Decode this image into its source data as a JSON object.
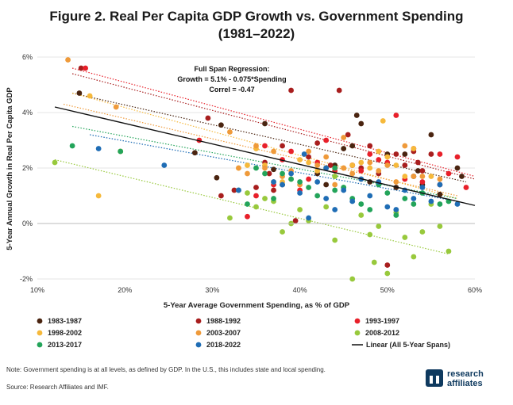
{
  "figure": {
    "title_line1": "Figure 2. Real Per Capita GDP Growth vs. Government Spending",
    "title_line2": "(1981–2022)",
    "note": "Note: Government spending is at all levels, as defined by GDP. In the U.S., this includes state and local spending.",
    "source": "Source: Research Affiliates and IMF.",
    "logo": {
      "word1": "research",
      "word2": "affiliates",
      "icon": "research-affiliates-logo-icon",
      "color": "#0f3a5f"
    }
  },
  "chart_data": {
    "type": "scatter",
    "title": "Figure 2. Real Per Capita GDP Growth vs. Government Spending (1981–2022)",
    "xlabel": "5-Year Average Government Spending, as % of GDP",
    "ylabel": "5-Year Annual Growth in Real Per Capita GDP",
    "xlim": [
      10,
      60
    ],
    "ylim": [
      -2,
      6
    ],
    "xticks": [
      10,
      20,
      30,
      40,
      50,
      60
    ],
    "yticks": [
      -2,
      0,
      2,
      4,
      6
    ],
    "xtick_labels": [
      "10%",
      "20%",
      "30%",
      "40%",
      "50%",
      "60%"
    ],
    "ytick_labels": [
      "-2%",
      "0%",
      "2%",
      "4%",
      "6%"
    ],
    "grid": "horizontal",
    "legend_placement": "bottom",
    "annotation": {
      "line1": "Full Span Regression:",
      "line2": "Growth = 5.1% - 0.075*Spending",
      "line3": "Correl = -0.47"
    },
    "regression": {
      "name": "Linear (All 5-Year Spans)",
      "color": "#111111",
      "x": [
        12,
        60
      ],
      "y": [
        4.2,
        0.65
      ]
    },
    "series": [
      {
        "name": "1983-1987",
        "color": "#4a2410",
        "trend": {
          "x": [
            14,
            59
          ],
          "y": [
            4.7,
            1.5
          ]
        },
        "points": [
          [
            14.8,
            4.7
          ],
          [
            28,
            2.55
          ],
          [
            30.5,
            1.65
          ],
          [
            31,
            3.55
          ],
          [
            36,
            3.6
          ],
          [
            37,
            1.95
          ],
          [
            38,
            1.4
          ],
          [
            42,
            1.8
          ],
          [
            43,
            1.4
          ],
          [
            44,
            2.1
          ],
          [
            45,
            2.7
          ],
          [
            46,
            2.8
          ],
          [
            46.5,
            3.9
          ],
          [
            47,
            3.6
          ],
          [
            48,
            1.5
          ],
          [
            50,
            2.5
          ],
          [
            51,
            1.3
          ],
          [
            52,
            2.5
          ],
          [
            53,
            1.7
          ],
          [
            53.5,
            1.9
          ],
          [
            54,
            1.4
          ],
          [
            55,
            3.2
          ],
          [
            58,
            2.0
          ],
          [
            58.5,
            1.7
          ],
          [
            56,
            1.05
          ]
        ]
      },
      {
        "name": "1988-1992",
        "color": "#a81e1e",
        "trend": {
          "x": [
            14,
            60
          ],
          "y": [
            5.4,
            1.6
          ]
        },
        "points": [
          [
            15,
            5.6
          ],
          [
            29.5,
            3.8
          ],
          [
            31,
            1.0
          ],
          [
            32.5,
            1.2
          ],
          [
            35,
            1.3
          ],
          [
            36,
            2.2
          ],
          [
            37,
            1.2
          ],
          [
            38,
            2.8
          ],
          [
            39,
            4.8
          ],
          [
            39.5,
            0.1
          ],
          [
            41,
            2.4
          ],
          [
            42,
            2.9
          ],
          [
            43.5,
            2.1
          ],
          [
            44.5,
            4.8
          ],
          [
            45.5,
            3.2
          ],
          [
            46,
            2.1
          ],
          [
            47,
            2.0
          ],
          [
            48,
            2.8
          ],
          [
            49,
            1.8
          ],
          [
            50,
            -1.5
          ],
          [
            51,
            2.5
          ],
          [
            52,
            2.1
          ],
          [
            53,
            2.6
          ],
          [
            53.5,
            2.2
          ],
          [
            54,
            1.9
          ],
          [
            55,
            2.5
          ],
          [
            56,
            1.4
          ],
          [
            36.5,
            1.8
          ]
        ]
      },
      {
        "name": "1993-1997",
        "color": "#e8202a",
        "trend": {
          "x": [
            14,
            60
          ],
          "y": [
            5.6,
            1.7
          ]
        },
        "points": [
          [
            15.5,
            5.6
          ],
          [
            28.5,
            3.0
          ],
          [
            35,
            1.0
          ],
          [
            36,
            2.8
          ],
          [
            37,
            1.4
          ],
          [
            38,
            2.3
          ],
          [
            39,
            2.6
          ],
          [
            40,
            1.2
          ],
          [
            41,
            1.6
          ],
          [
            42,
            2.2
          ],
          [
            43,
            3.0
          ],
          [
            44,
            1.9
          ],
          [
            46,
            2.1
          ],
          [
            47,
            1.9
          ],
          [
            48,
            2.5
          ],
          [
            49,
            2.3
          ],
          [
            50,
            2.2
          ],
          [
            51,
            3.9
          ],
          [
            52,
            1.6
          ],
          [
            53,
            2.7
          ],
          [
            54,
            1.5
          ],
          [
            56,
            2.5
          ],
          [
            57,
            1.8
          ],
          [
            58,
            2.4
          ],
          [
            59,
            1.3
          ],
          [
            34,
            0.25
          ]
        ]
      },
      {
        "name": "1998-2002",
        "color": "#f6b93b",
        "trend": {
          "x": [
            14,
            58
          ],
          "y": [
            4.7,
            0.9
          ]
        },
        "points": [
          [
            16,
            4.6
          ],
          [
            17,
            1.0
          ],
          [
            19.5,
            2.6
          ],
          [
            33,
            2.0
          ],
          [
            34,
            2.1
          ],
          [
            35,
            2.7
          ],
          [
            36,
            2.1
          ],
          [
            37,
            1.5
          ],
          [
            38,
            1.5
          ],
          [
            39,
            1.6
          ],
          [
            40,
            2.3
          ],
          [
            41,
            2.2
          ],
          [
            42,
            1.9
          ],
          [
            43,
            2.0
          ],
          [
            45,
            2.0
          ],
          [
            46,
            2.1
          ],
          [
            47,
            2.2
          ],
          [
            48,
            2.0
          ],
          [
            49,
            2.6
          ],
          [
            50,
            2.4
          ],
          [
            51,
            2.1
          ],
          [
            52,
            1.7
          ],
          [
            53,
            2.7
          ],
          [
            55,
            1.7
          ],
          [
            49.5,
            3.7
          ]
        ]
      },
      {
        "name": "2003-2007",
        "color": "#ef9a3a",
        "trend": {
          "x": [
            13,
            58
          ],
          "y": [
            4.3,
            1.0
          ]
        },
        "points": [
          [
            13.5,
            5.9
          ],
          [
            19,
            4.2
          ],
          [
            32,
            3.3
          ],
          [
            33,
            2.0
          ],
          [
            34,
            1.8
          ],
          [
            35,
            2.8
          ],
          [
            36,
            2.0
          ],
          [
            37,
            2.6
          ],
          [
            38,
            1.7
          ],
          [
            39,
            1.9
          ],
          [
            40,
            1.4
          ],
          [
            41,
            2.6
          ],
          [
            42,
            2.1
          ],
          [
            43,
            2.4
          ],
          [
            44,
            1.4
          ],
          [
            45,
            2.0
          ],
          [
            46,
            1.8
          ],
          [
            47,
            1.6
          ],
          [
            48,
            2.2
          ],
          [
            49,
            1.9
          ],
          [
            50,
            2.1
          ],
          [
            51,
            1.5
          ],
          [
            52,
            2.8
          ],
          [
            53,
            1.7
          ],
          [
            54,
            1.7
          ],
          [
            56,
            1.6
          ],
          [
            45,
            3.1
          ]
        ]
      },
      {
        "name": "2008-2012",
        "color": "#98c93c",
        "trend": {
          "x": [
            12,
            57
          ],
          "y": [
            2.3,
            -1.1
          ]
        },
        "points": [
          [
            12,
            2.2
          ],
          [
            19.5,
            2.6
          ],
          [
            32,
            0.2
          ],
          [
            34,
            1.1
          ],
          [
            35,
            0.6
          ],
          [
            36,
            0.9
          ],
          [
            37,
            0.8
          ],
          [
            38,
            -0.3
          ],
          [
            39,
            0.0
          ],
          [
            40,
            0.5
          ],
          [
            41,
            0.1
          ],
          [
            43,
            0.6
          ],
          [
            44,
            -0.6
          ],
          [
            45,
            1.3
          ],
          [
            46,
            -2.0
          ],
          [
            47,
            0.3
          ],
          [
            48,
            -0.4
          ],
          [
            48.5,
            -1.4
          ],
          [
            49,
            -0.1
          ],
          [
            50,
            -1.8
          ],
          [
            51,
            0.4
          ],
          [
            52,
            -0.5
          ],
          [
            53,
            -1.2
          ],
          [
            54,
            -0.3
          ],
          [
            55,
            0.7
          ],
          [
            56,
            -0.1
          ],
          [
            57,
            -1.0
          ],
          [
            44,
            1.7
          ]
        ]
      },
      {
        "name": "2013-2017",
        "color": "#23a45a",
        "trend": {
          "x": [
            14,
            58
          ],
          "y": [
            3.5,
            0.9
          ]
        },
        "points": [
          [
            14,
            2.8
          ],
          [
            19.5,
            2.6
          ],
          [
            33,
            1.2
          ],
          [
            34,
            0.7
          ],
          [
            35,
            2.0
          ],
          [
            36,
            1.8
          ],
          [
            37,
            0.9
          ],
          [
            38,
            1.8
          ],
          [
            39,
            1.6
          ],
          [
            40,
            1.5
          ],
          [
            41,
            1.3
          ],
          [
            42,
            1.0
          ],
          [
            43,
            2.0
          ],
          [
            44,
            1.2
          ],
          [
            45,
            1.3
          ],
          [
            46,
            0.9
          ],
          [
            47,
            0.7
          ],
          [
            48,
            0.5
          ],
          [
            49,
            1.4
          ],
          [
            50,
            1.1
          ],
          [
            51,
            0.3
          ],
          [
            52,
            0.9
          ],
          [
            53,
            0.7
          ],
          [
            54,
            1.1
          ],
          [
            56,
            0.7
          ],
          [
            57,
            0.8
          ],
          [
            44,
            2.0
          ]
        ]
      },
      {
        "name": "2018-2022",
        "color": "#1f6db5",
        "trend": {
          "x": [
            16,
            58
          ],
          "y": [
            3.2,
            0.8
          ]
        },
        "points": [
          [
            17,
            2.7
          ],
          [
            24.5,
            2.1
          ],
          [
            33,
            1.2
          ],
          [
            37,
            1.5
          ],
          [
            38,
            1.4
          ],
          [
            39,
            1.8
          ],
          [
            40,
            1.1
          ],
          [
            41,
            0.2
          ],
          [
            42,
            1.5
          ],
          [
            43,
            0.9
          ],
          [
            44,
            0.5
          ],
          [
            45,
            1.2
          ],
          [
            46,
            0.8
          ],
          [
            47,
            1.6
          ],
          [
            48,
            1.0
          ],
          [
            49,
            1.5
          ],
          [
            50,
            0.6
          ],
          [
            51,
            0.5
          ],
          [
            52,
            1.2
          ],
          [
            53,
            0.9
          ],
          [
            54,
            1.3
          ],
          [
            55,
            0.8
          ],
          [
            56,
            1.4
          ],
          [
            58,
            0.7
          ],
          [
            40.5,
            2.5
          ],
          [
            43,
            2.0
          ]
        ]
      }
    ]
  }
}
